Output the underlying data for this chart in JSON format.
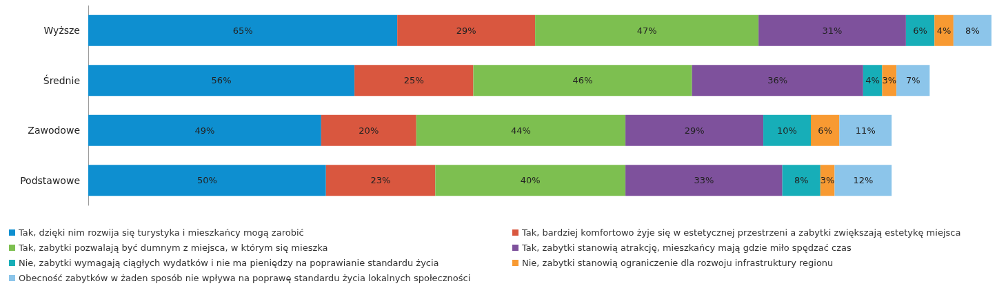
{
  "chart_data": {
    "type": "bar",
    "orientation": "horizontal",
    "stacked": true,
    "categories": [
      "Wyższe",
      "Średnie",
      "Zawodowe",
      "Podstawowe"
    ],
    "legend": "bottom",
    "series": [
      {
        "name": "Tak, dzięki nim rozwija się turystyka i mieszkańcy mogą zarobić",
        "color": "#0e8fd0",
        "values": [
          65,
          56,
          49,
          50
        ],
        "value_labels": [
          "65%",
          "56%",
          "49%",
          "50%"
        ]
      },
      {
        "name": "Tak, bardziej komfortowo żyje się w estetycznej przestrzeni a zabytki zwiększają estetykę miejsca",
        "color": "#d9573f",
        "values": [
          29,
          25,
          20,
          23
        ],
        "value_labels": [
          "29%",
          "25%",
          "20%",
          "23%"
        ]
      },
      {
        "name": "Tak, zabytki pozwalają być dumnym z miejsca, w którym się mieszka",
        "color": "#7dbf50",
        "values": [
          47,
          46,
          44,
          40
        ],
        "value_labels": [
          "47%",
          "46%",
          "44%",
          "40%"
        ]
      },
      {
        "name": "Tak, zabytki stanowią atrakcję, mieszkańcy mają gdzie miło spędzać czas",
        "color": "#7e519c",
        "values": [
          31,
          36,
          29,
          33
        ],
        "value_labels": [
          "31%",
          "36%",
          "29%",
          "33%"
        ]
      },
      {
        "name": "Nie, zabytki wymagają ciągłych wydatków i nie ma pieniędzy na poprawianie standardu życia",
        "color": "#17aeb8",
        "values": [
          6,
          4,
          10,
          8
        ],
        "value_labels": [
          "6%",
          "4%",
          "10%",
          "8%"
        ]
      },
      {
        "name": "Nie, zabytki stanowią ograniczenie dla rozwoju infrastruktury regionu",
        "color": "#f89a32",
        "values": [
          4,
          3,
          6,
          3
        ],
        "value_labels": [
          "4%",
          "3%",
          "6%",
          "3%"
        ]
      },
      {
        "name": "Obecność zabytków w żaden sposób nie wpływa na poprawę standardu życia lokalnych społeczności",
        "color": "#8cc5ea",
        "values": [
          8,
          7,
          11,
          12
        ],
        "value_labels": [
          "8%",
          "7%",
          "11%",
          "12%"
        ]
      }
    ]
  }
}
